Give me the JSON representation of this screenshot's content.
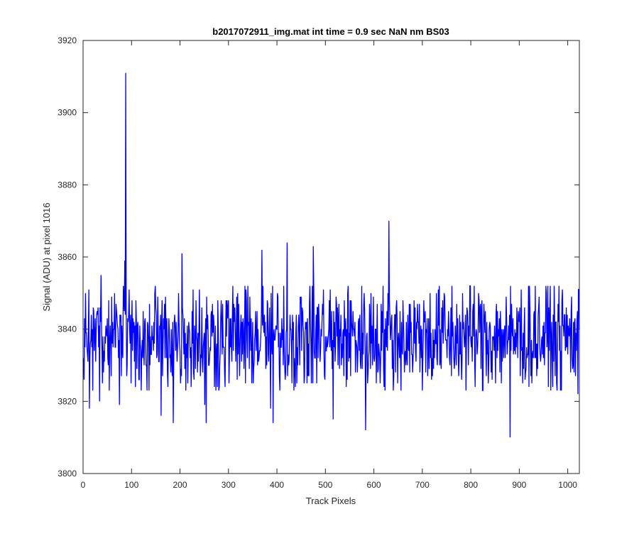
{
  "chart_data": {
    "type": "line",
    "title": "b2017072911_img.mat int time = 0.9 sec  NaN nm BS03",
    "xlabel": "Track Pixels",
    "ylabel": "Signal (ADU) at pixel 1016",
    "xlim": [
      0,
      1024
    ],
    "ylim": [
      3800,
      3920
    ],
    "xticks": [
      0,
      100,
      200,
      300,
      400,
      500,
      600,
      700,
      800,
      900,
      1000
    ],
    "yticks": [
      3800,
      3820,
      3840,
      3860,
      3880,
      3900,
      3920
    ],
    "grid": false,
    "line_color": "#0000ff",
    "series": [
      {
        "n_points": 1024,
        "baseline": 3838,
        "noise_amplitude": 8,
        "notable_points": [
          {
            "x": 1,
            "y": 3826
          },
          {
            "x": 4,
            "y": 3850
          },
          {
            "x": 12,
            "y": 3818
          },
          {
            "x": 36,
            "y": 3855
          },
          {
            "x": 33,
            "y": 3820
          },
          {
            "x": 74,
            "y": 3819
          },
          {
            "x": 85,
            "y": 3859
          },
          {
            "x": 87,
            "y": 3911
          },
          {
            "x": 90,
            "y": 3830
          },
          {
            "x": 160,
            "y": 3816
          },
          {
            "x": 185,
            "y": 3814
          },
          {
            "x": 203,
            "y": 3861
          },
          {
            "x": 250,
            "y": 3819
          },
          {
            "x": 253,
            "y": 3814
          },
          {
            "x": 368,
            "y": 3862
          },
          {
            "x": 386,
            "y": 3818
          },
          {
            "x": 391,
            "y": 3814
          },
          {
            "x": 420,
            "y": 3864
          },
          {
            "x": 474,
            "y": 3863
          },
          {
            "x": 515,
            "y": 3815
          },
          {
            "x": 582,
            "y": 3812
          },
          {
            "x": 630,
            "y": 3870
          },
          {
            "x": 880,
            "y": 3810
          },
          {
            "x": 1020,
            "y": 3822
          },
          {
            "x": 1022,
            "y": 3851
          }
        ]
      }
    ]
  }
}
